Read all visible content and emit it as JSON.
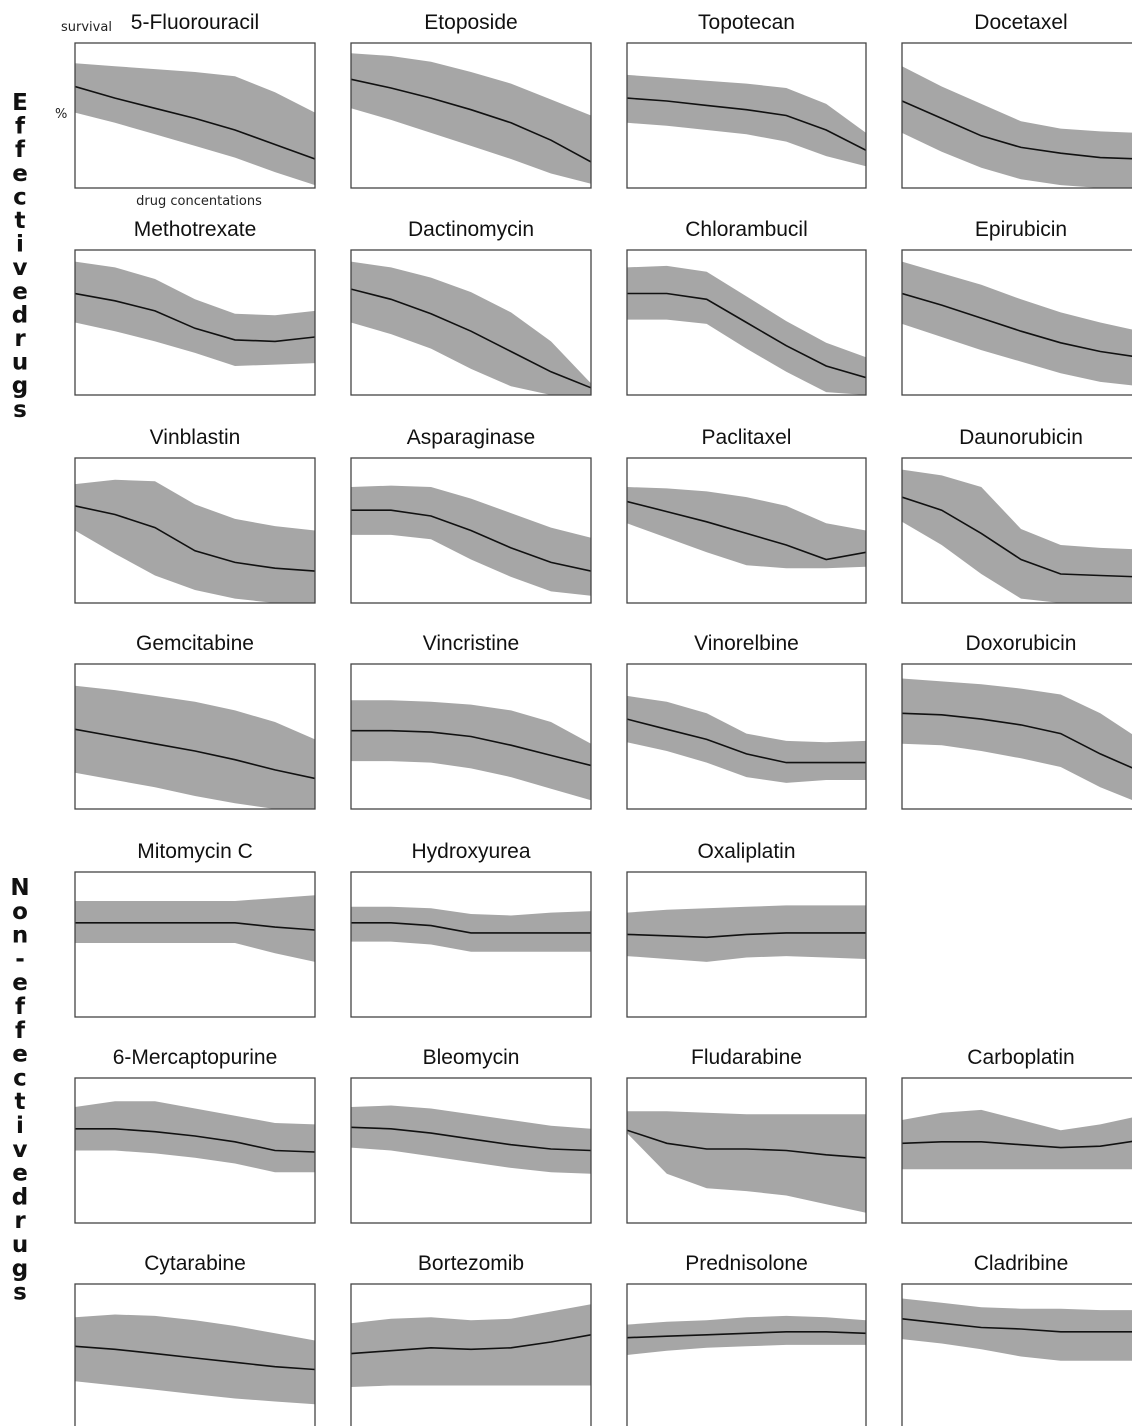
{
  "groups": [
    {
      "label": "Effective drugs"
    },
    {
      "label": "Non-effective drugs"
    }
  ],
  "annotations": {
    "y_label": "survival",
    "y_unit": "%",
    "x_label": "drug concentations"
  },
  "colors": {
    "band": "#a6a6a6",
    "line": "#111111",
    "frame": "#444444"
  },
  "chart_data": [
    {
      "type": "area",
      "title": "5-Fluorouracil",
      "group": "Effective drugs",
      "x": [
        0,
        1,
        2,
        3,
        4,
        5,
        6
      ],
      "mean": [
        0.7,
        0.62,
        0.55,
        0.48,
        0.4,
        0.3,
        0.2
      ],
      "lower": [
        0.52,
        0.45,
        0.37,
        0.29,
        0.21,
        0.11,
        0.02
      ],
      "upper": [
        0.86,
        0.84,
        0.82,
        0.8,
        0.77,
        0.66,
        0.52
      ],
      "ylim": [
        0,
        1
      ]
    },
    {
      "type": "area",
      "title": "Etoposide",
      "group": "Effective drugs",
      "x": [
        0,
        1,
        2,
        3,
        4,
        5,
        6
      ],
      "mean": [
        0.75,
        0.69,
        0.62,
        0.54,
        0.45,
        0.33,
        0.18
      ],
      "lower": [
        0.55,
        0.47,
        0.38,
        0.29,
        0.2,
        0.1,
        0.03
      ],
      "upper": [
        0.93,
        0.91,
        0.87,
        0.8,
        0.72,
        0.61,
        0.5
      ],
      "ylim": [
        0,
        1
      ]
    },
    {
      "type": "area",
      "title": "Topotecan",
      "group": "Effective drugs",
      "x": [
        0,
        1,
        2,
        3,
        4,
        5,
        6
      ],
      "mean": [
        0.62,
        0.6,
        0.57,
        0.54,
        0.5,
        0.4,
        0.26
      ],
      "lower": [
        0.45,
        0.43,
        0.4,
        0.37,
        0.32,
        0.22,
        0.15
      ],
      "upper": [
        0.78,
        0.76,
        0.74,
        0.72,
        0.69,
        0.58,
        0.38
      ],
      "ylim": [
        0,
        1
      ]
    },
    {
      "type": "area",
      "title": "Docetaxel",
      "group": "Effective drugs",
      "x": [
        0,
        1,
        2,
        3,
        4,
        5,
        6
      ],
      "mean": [
        0.6,
        0.48,
        0.36,
        0.28,
        0.24,
        0.21,
        0.2
      ],
      "lower": [
        0.38,
        0.25,
        0.14,
        0.06,
        0.02,
        0.0,
        0.0
      ],
      "upper": [
        0.84,
        0.7,
        0.58,
        0.46,
        0.41,
        0.39,
        0.38
      ],
      "ylim": [
        0,
        1
      ]
    },
    {
      "type": "area",
      "title": "Methotrexate",
      "group": "Effective drugs",
      "x": [
        0,
        1,
        2,
        3,
        4,
        5,
        6
      ],
      "mean": [
        0.7,
        0.65,
        0.58,
        0.46,
        0.38,
        0.37,
        0.4
      ],
      "lower": [
        0.5,
        0.44,
        0.37,
        0.29,
        0.2,
        0.21,
        0.22
      ],
      "upper": [
        0.92,
        0.88,
        0.8,
        0.66,
        0.56,
        0.55,
        0.58
      ],
      "ylim": [
        0,
        1
      ]
    },
    {
      "type": "area",
      "title": "Dactinomycin",
      "group": "Effective drugs",
      "x": [
        0,
        1,
        2,
        3,
        4,
        5,
        6
      ],
      "mean": [
        0.73,
        0.66,
        0.56,
        0.44,
        0.3,
        0.16,
        0.05
      ],
      "lower": [
        0.5,
        0.42,
        0.32,
        0.18,
        0.06,
        0.0,
        0.0
      ],
      "upper": [
        0.92,
        0.88,
        0.81,
        0.71,
        0.57,
        0.37,
        0.08
      ],
      "ylim": [
        0,
        1
      ]
    },
    {
      "type": "area",
      "title": "Chlorambucil",
      "group": "Effective drugs",
      "x": [
        0,
        1,
        2,
        3,
        4,
        5,
        6
      ],
      "mean": [
        0.7,
        0.7,
        0.66,
        0.5,
        0.34,
        0.2,
        0.12
      ],
      "lower": [
        0.52,
        0.52,
        0.49,
        0.32,
        0.16,
        0.02,
        0.0
      ],
      "upper": [
        0.88,
        0.89,
        0.85,
        0.68,
        0.51,
        0.36,
        0.26
      ],
      "ylim": [
        0,
        1
      ]
    },
    {
      "type": "area",
      "title": "Epirubicin",
      "group": "Effective drugs",
      "x": [
        0,
        1,
        2,
        3,
        4,
        5,
        6
      ],
      "mean": [
        0.7,
        0.62,
        0.53,
        0.44,
        0.36,
        0.3,
        0.26
      ],
      "lower": [
        0.49,
        0.4,
        0.31,
        0.23,
        0.15,
        0.09,
        0.06
      ],
      "upper": [
        0.92,
        0.84,
        0.76,
        0.66,
        0.57,
        0.5,
        0.44
      ],
      "ylim": [
        0,
        1
      ]
    },
    {
      "type": "area",
      "title": "Vinblastin",
      "group": "Effective drugs",
      "x": [
        0,
        1,
        2,
        3,
        4,
        5,
        6
      ],
      "mean": [
        0.67,
        0.61,
        0.52,
        0.36,
        0.28,
        0.24,
        0.22
      ],
      "lower": [
        0.5,
        0.34,
        0.19,
        0.09,
        0.03,
        0.0,
        0.0
      ],
      "upper": [
        0.82,
        0.85,
        0.84,
        0.68,
        0.58,
        0.53,
        0.5
      ],
      "ylim": [
        0,
        1
      ]
    },
    {
      "type": "area",
      "title": "Asparaginase",
      "group": "Effective drugs",
      "x": [
        0,
        1,
        2,
        3,
        4,
        5,
        6
      ],
      "mean": [
        0.64,
        0.64,
        0.6,
        0.5,
        0.38,
        0.28,
        0.22
      ],
      "lower": [
        0.47,
        0.47,
        0.44,
        0.3,
        0.18,
        0.08,
        0.05
      ],
      "upper": [
        0.8,
        0.81,
        0.8,
        0.72,
        0.62,
        0.52,
        0.45
      ],
      "ylim": [
        0,
        1
      ]
    },
    {
      "type": "area",
      "title": "Paclitaxel",
      "group": "Effective drugs",
      "x": [
        0,
        1,
        2,
        3,
        4,
        5,
        6
      ],
      "mean": [
        0.7,
        0.63,
        0.56,
        0.48,
        0.4,
        0.3,
        0.35
      ],
      "lower": [
        0.55,
        0.45,
        0.35,
        0.26,
        0.24,
        0.24,
        0.25
      ],
      "upper": [
        0.8,
        0.79,
        0.77,
        0.73,
        0.67,
        0.55,
        0.5
      ],
      "ylim": [
        0,
        1
      ]
    },
    {
      "type": "area",
      "title": "Daunorubicin",
      "group": "Effective drugs",
      "x": [
        0,
        1,
        2,
        3,
        4,
        5,
        6
      ],
      "mean": [
        0.73,
        0.64,
        0.48,
        0.3,
        0.2,
        0.19,
        0.18
      ],
      "lower": [
        0.56,
        0.4,
        0.2,
        0.03,
        0.0,
        0.0,
        0.0
      ],
      "upper": [
        0.92,
        0.88,
        0.8,
        0.51,
        0.4,
        0.38,
        0.37
      ],
      "ylim": [
        0,
        1
      ]
    },
    {
      "type": "area",
      "title": "Gemcitabine",
      "group": "Effective drugs",
      "x": [
        0,
        1,
        2,
        3,
        4,
        5,
        6
      ],
      "mean": [
        0.55,
        0.5,
        0.45,
        0.4,
        0.34,
        0.27,
        0.21
      ],
      "lower": [
        0.25,
        0.2,
        0.15,
        0.09,
        0.04,
        0.0,
        0.0
      ],
      "upper": [
        0.85,
        0.82,
        0.78,
        0.74,
        0.68,
        0.6,
        0.48
      ],
      "ylim": [
        0,
        1
      ]
    },
    {
      "type": "area",
      "title": "Vincristine",
      "group": "Effective drugs",
      "x": [
        0,
        1,
        2,
        3,
        4,
        5,
        6
      ],
      "mean": [
        0.54,
        0.54,
        0.53,
        0.5,
        0.44,
        0.37,
        0.3
      ],
      "lower": [
        0.33,
        0.33,
        0.32,
        0.28,
        0.22,
        0.14,
        0.06
      ],
      "upper": [
        0.75,
        0.75,
        0.74,
        0.72,
        0.68,
        0.6,
        0.45
      ],
      "ylim": [
        0,
        1
      ]
    },
    {
      "type": "area",
      "title": "Vinorelbine",
      "group": "Effective drugs",
      "x": [
        0,
        1,
        2,
        3,
        4,
        5,
        6
      ],
      "mean": [
        0.62,
        0.55,
        0.48,
        0.38,
        0.32,
        0.32,
        0.32
      ],
      "lower": [
        0.46,
        0.4,
        0.32,
        0.22,
        0.18,
        0.2,
        0.2
      ],
      "upper": [
        0.78,
        0.74,
        0.66,
        0.52,
        0.47,
        0.46,
        0.47
      ],
      "ylim": [
        0,
        1
      ]
    },
    {
      "type": "area",
      "title": "Doxorubicin",
      "group": "Effective drugs",
      "x": [
        0,
        1,
        2,
        3,
        4,
        5,
        6
      ],
      "mean": [
        0.66,
        0.65,
        0.62,
        0.58,
        0.52,
        0.38,
        0.26
      ],
      "lower": [
        0.45,
        0.44,
        0.4,
        0.35,
        0.29,
        0.15,
        0.04
      ],
      "upper": [
        0.9,
        0.88,
        0.86,
        0.83,
        0.79,
        0.66,
        0.48
      ],
      "ylim": [
        0,
        1
      ]
    },
    {
      "type": "area",
      "title": "Mitomycin C",
      "group": "Non-effective drugs",
      "x": [
        0,
        1,
        2,
        3,
        4,
        5,
        6
      ],
      "mean": [
        0.65,
        0.65,
        0.65,
        0.65,
        0.65,
        0.62,
        0.6
      ],
      "lower": [
        0.51,
        0.51,
        0.51,
        0.51,
        0.51,
        0.44,
        0.38
      ],
      "upper": [
        0.8,
        0.8,
        0.8,
        0.8,
        0.8,
        0.82,
        0.84
      ],
      "ylim": [
        0,
        1
      ]
    },
    {
      "type": "area",
      "title": "Hydroxyurea",
      "group": "Non-effective drugs",
      "x": [
        0,
        1,
        2,
        3,
        4,
        5,
        6
      ],
      "mean": [
        0.65,
        0.65,
        0.63,
        0.58,
        0.58,
        0.58,
        0.58
      ],
      "lower": [
        0.52,
        0.52,
        0.5,
        0.45,
        0.45,
        0.45,
        0.45
      ],
      "upper": [
        0.76,
        0.76,
        0.75,
        0.71,
        0.7,
        0.72,
        0.73
      ],
      "ylim": [
        0,
        1
      ]
    },
    {
      "type": "area",
      "title": "Oxaliplatin",
      "group": "Non-effective drugs",
      "x": [
        0,
        1,
        2,
        3,
        4,
        5,
        6
      ],
      "mean": [
        0.57,
        0.56,
        0.55,
        0.57,
        0.58,
        0.58,
        0.58
      ],
      "lower": [
        0.42,
        0.4,
        0.38,
        0.41,
        0.42,
        0.41,
        0.4
      ],
      "upper": [
        0.72,
        0.74,
        0.75,
        0.76,
        0.77,
        0.77,
        0.77
      ],
      "ylim": [
        0,
        1
      ]
    },
    {
      "type": "area",
      "title": "6-Mercaptopurine",
      "group": "Non-effective drugs",
      "x": [
        0,
        1,
        2,
        3,
        4,
        5,
        6
      ],
      "mean": [
        0.65,
        0.65,
        0.63,
        0.6,
        0.56,
        0.5,
        0.49
      ],
      "lower": [
        0.5,
        0.5,
        0.48,
        0.45,
        0.41,
        0.35,
        0.35
      ],
      "upper": [
        0.8,
        0.84,
        0.84,
        0.79,
        0.74,
        0.69,
        0.68
      ],
      "ylim": [
        0,
        1
      ]
    },
    {
      "type": "area",
      "title": "Bleomycin",
      "group": "Non-effective drugs",
      "x": [
        0,
        1,
        2,
        3,
        4,
        5,
        6
      ],
      "mean": [
        0.66,
        0.65,
        0.62,
        0.58,
        0.54,
        0.51,
        0.5
      ],
      "lower": [
        0.52,
        0.5,
        0.46,
        0.42,
        0.38,
        0.35,
        0.34
      ],
      "upper": [
        0.8,
        0.81,
        0.79,
        0.75,
        0.71,
        0.67,
        0.65
      ],
      "ylim": [
        0,
        1
      ]
    },
    {
      "type": "area",
      "title": "Fludarabine",
      "group": "Non-effective drugs",
      "x": [
        0,
        1,
        2,
        3,
        4,
        5,
        6
      ],
      "mean": [
        0.64,
        0.55,
        0.51,
        0.51,
        0.5,
        0.47,
        0.45
      ],
      "lower": [
        0.62,
        0.34,
        0.24,
        0.22,
        0.19,
        0.13,
        0.07
      ],
      "upper": [
        0.77,
        0.77,
        0.76,
        0.75,
        0.75,
        0.75,
        0.75
      ],
      "ylim": [
        0,
        1
      ]
    },
    {
      "type": "area",
      "title": "Carboplatin",
      "group": "Non-effective drugs",
      "x": [
        0,
        1,
        2,
        3,
        4,
        5,
        6
      ],
      "mean": [
        0.55,
        0.56,
        0.56,
        0.54,
        0.52,
        0.53,
        0.57
      ],
      "lower": [
        0.37,
        0.37,
        0.37,
        0.37,
        0.37,
        0.37,
        0.37
      ],
      "upper": [
        0.71,
        0.76,
        0.78,
        0.71,
        0.64,
        0.68,
        0.74
      ],
      "ylim": [
        0,
        1
      ]
    },
    {
      "type": "area",
      "title": "Cytarabine",
      "group": "Non-effective drugs",
      "x": [
        0,
        1,
        2,
        3,
        4,
        5,
        6
      ],
      "mean": [
        0.57,
        0.55,
        0.52,
        0.49,
        0.46,
        0.43,
        0.41
      ],
      "lower": [
        0.33,
        0.3,
        0.27,
        0.24,
        0.21,
        0.19,
        0.17
      ],
      "upper": [
        0.77,
        0.79,
        0.78,
        0.75,
        0.71,
        0.66,
        0.61
      ],
      "ylim": [
        0,
        1
      ]
    },
    {
      "type": "area",
      "title": "Bortezomib",
      "group": "Non-effective drugs",
      "x": [
        0,
        1,
        2,
        3,
        4,
        5,
        6
      ],
      "mean": [
        0.52,
        0.54,
        0.56,
        0.55,
        0.56,
        0.6,
        0.65
      ],
      "lower": [
        0.29,
        0.3,
        0.3,
        0.3,
        0.3,
        0.3,
        0.3
      ],
      "upper": [
        0.73,
        0.76,
        0.77,
        0.75,
        0.76,
        0.81,
        0.86
      ],
      "ylim": [
        0,
        1
      ]
    },
    {
      "type": "area",
      "title": "Prednisolone",
      "group": "Non-effective drugs",
      "x": [
        0,
        1,
        2,
        3,
        4,
        5,
        6
      ],
      "mean": [
        0.63,
        0.64,
        0.65,
        0.66,
        0.67,
        0.67,
        0.66
      ],
      "lower": [
        0.51,
        0.54,
        0.56,
        0.57,
        0.58,
        0.58,
        0.58
      ],
      "upper": [
        0.72,
        0.74,
        0.75,
        0.77,
        0.78,
        0.77,
        0.75
      ],
      "ylim": [
        0,
        1
      ]
    },
    {
      "type": "area",
      "title": "Cladribine",
      "group": "Non-effective drugs",
      "x": [
        0,
        1,
        2,
        3,
        4,
        5,
        6
      ],
      "mean": [
        0.76,
        0.73,
        0.7,
        0.69,
        0.67,
        0.67,
        0.67
      ],
      "lower": [
        0.62,
        0.59,
        0.55,
        0.5,
        0.47,
        0.47,
        0.47
      ],
      "upper": [
        0.9,
        0.87,
        0.84,
        0.83,
        0.83,
        0.82,
        0.82
      ],
      "ylim": [
        0,
        1
      ]
    }
  ]
}
